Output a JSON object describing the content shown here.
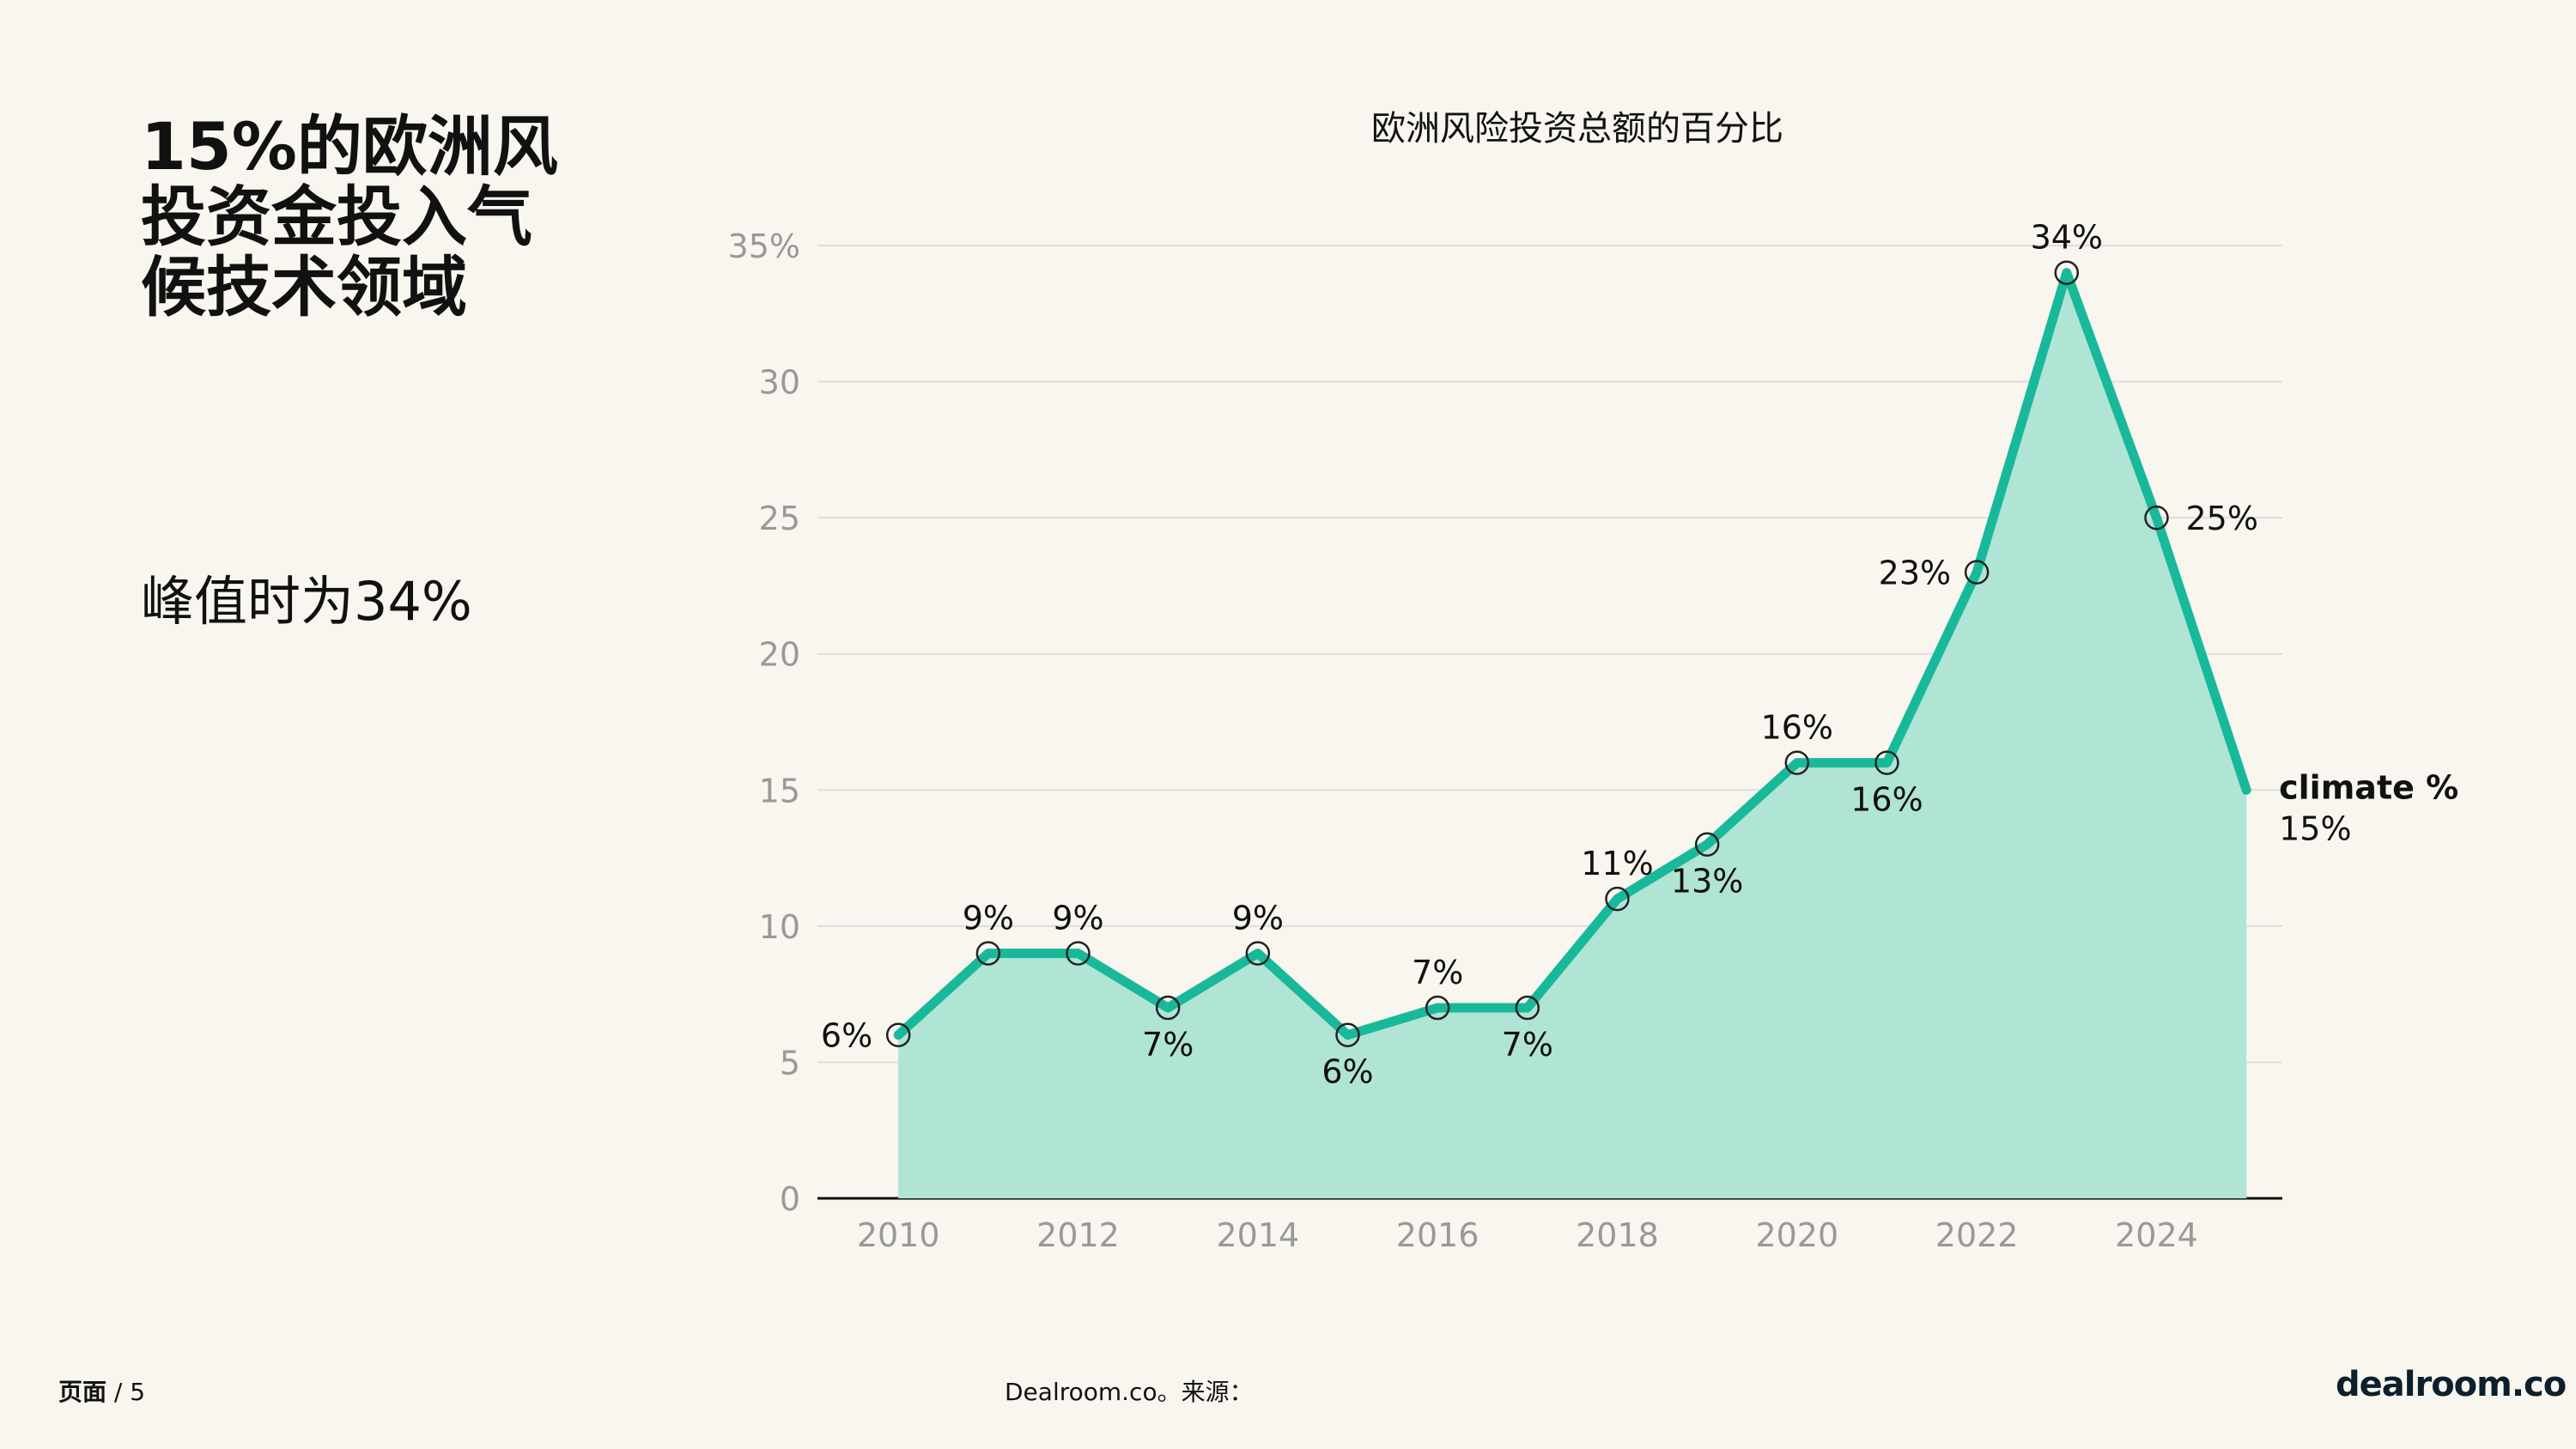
{
  "headline": "15%的欧洲风投资金投入气候技术领域",
  "subheadline": "峰值时为34%",
  "footer": {
    "page_label": "页面",
    "page_sep": "/ 5",
    "source": "Dealroom.co。来源：",
    "logo": "dealroom.co"
  },
  "colors": {
    "line": "#18b99a",
    "fill": "#b0e4d5",
    "marker_stroke": "#222222",
    "grid": "#dddddd",
    "tick": "#999999",
    "background": "#f8f6ef"
  },
  "chart_data": {
    "type": "area",
    "title": "欧洲风险投资总额的百分比",
    "x": [
      2010,
      2011,
      2012,
      2013,
      2014,
      2015,
      2016,
      2017,
      2018,
      2019,
      2020,
      2021,
      2022,
      2023,
      2024,
      2025
    ],
    "series": [
      {
        "name": "climate %",
        "values": [
          6,
          9,
          9,
          7,
          9,
          6,
          7,
          7,
          11,
          13,
          16,
          16,
          23,
          34,
          25,
          15
        ]
      }
    ],
    "data_labels": [
      "6%",
      "9%",
      "9%",
      "7%",
      "9%",
      "6%",
      "7%",
      "7%",
      "11%",
      "13%",
      "16%",
      "16%",
      "23%",
      "34%",
      "25%",
      ""
    ],
    "end_label": {
      "name": "climate %",
      "value": "15%"
    },
    "x_ticks": [
      "2010",
      "2012",
      "2014",
      "2016",
      "2018",
      "2020",
      "2022",
      "2024"
    ],
    "y_ticks": [
      "0",
      "5",
      "10",
      "15",
      "20",
      "25",
      "30",
      "35%"
    ],
    "ylim": [
      0,
      35
    ],
    "xlim": [
      2009.1,
      2025.4
    ],
    "grid": true
  }
}
